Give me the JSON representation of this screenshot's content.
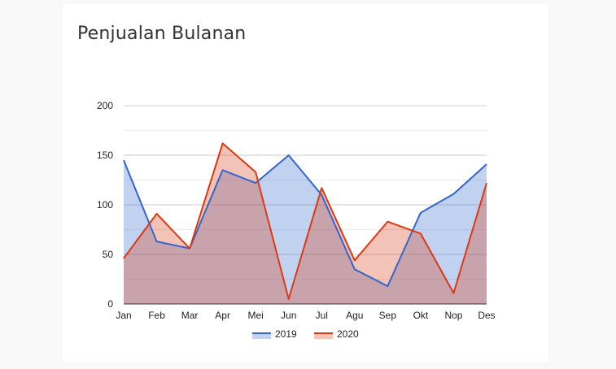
{
  "card": {
    "title": "Penjualan Bulanan"
  },
  "chart_data": {
    "type": "area",
    "title": "Penjualan Bulanan",
    "categories": [
      "Jan",
      "Feb",
      "Mar",
      "Apr",
      "Mei",
      "Jun",
      "Jul",
      "Agu",
      "Sep",
      "Okt",
      "Nop",
      "Des"
    ],
    "series": [
      {
        "name": "2019",
        "color": "#3366cc",
        "fill": "#c0d0f0",
        "values": [
          145,
          63,
          56,
          135,
          122,
          150,
          110,
          35,
          18,
          92,
          111,
          141
        ]
      },
      {
        "name": "2020",
        "color": "#dc3912",
        "fill": "#f3c1b4",
        "values": [
          46,
          91,
          56,
          162,
          133,
          5,
          117,
          44,
          83,
          71,
          11,
          122
        ]
      }
    ],
    "ylim": [
      0,
      200
    ],
    "yticks": [
      0,
      50,
      100,
      150,
      200
    ],
    "grid": true,
    "legend_position": "bottom",
    "xlabel": "",
    "ylabel": ""
  }
}
